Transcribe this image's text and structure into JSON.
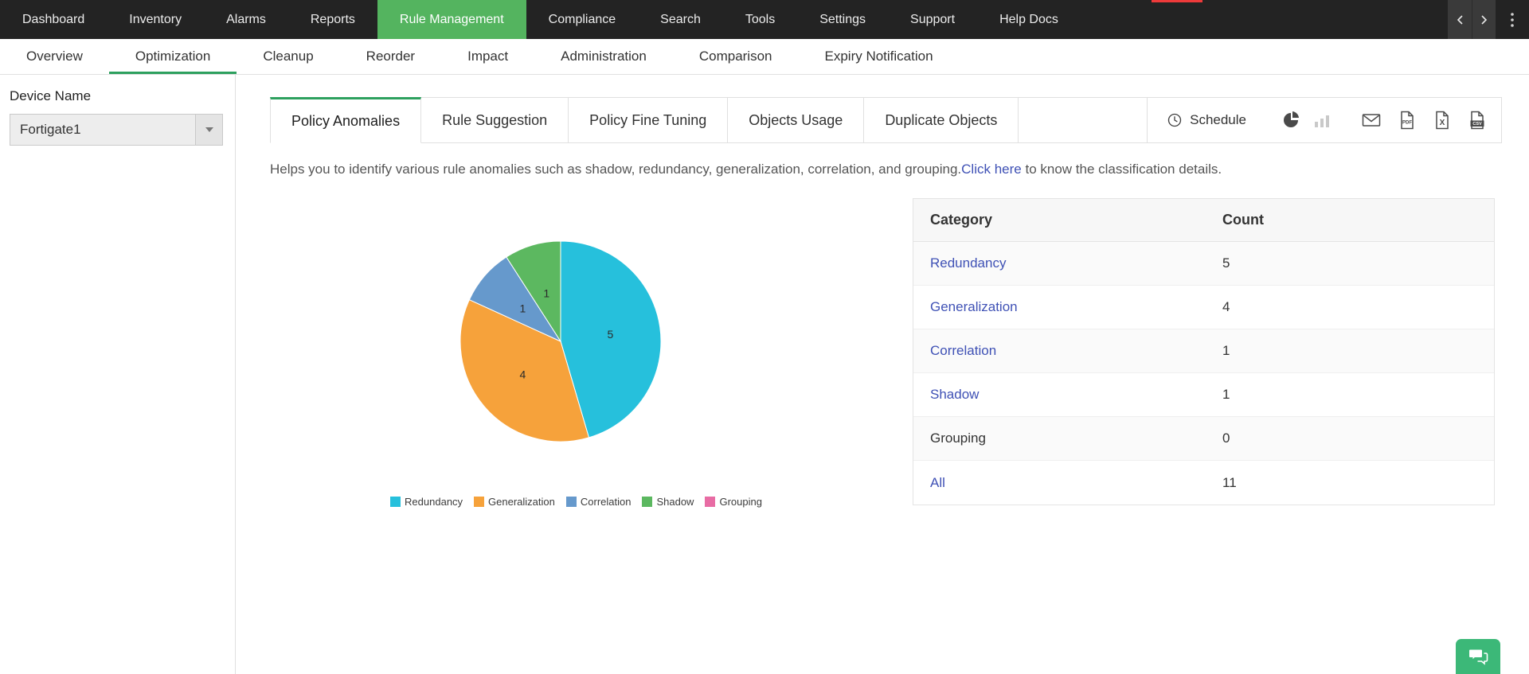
{
  "top_nav": {
    "items": [
      {
        "label": "Dashboard"
      },
      {
        "label": "Inventory"
      },
      {
        "label": "Alarms"
      },
      {
        "label": "Reports"
      },
      {
        "label": "Rule Management"
      },
      {
        "label": "Compliance"
      },
      {
        "label": "Search"
      },
      {
        "label": "Tools"
      },
      {
        "label": "Settings"
      },
      {
        "label": "Support"
      },
      {
        "label": "Help Docs"
      }
    ],
    "active": "Rule Management",
    "active_color": "#54B45F",
    "background_color": "#232323"
  },
  "sub_nav": {
    "items": [
      {
        "label": "Overview"
      },
      {
        "label": "Optimization"
      },
      {
        "label": "Cleanup"
      },
      {
        "label": "Reorder"
      },
      {
        "label": "Impact"
      },
      {
        "label": "Administration"
      },
      {
        "label": "Comparison"
      },
      {
        "label": "Expiry Notification"
      }
    ],
    "active": "Optimization",
    "active_underline_color": "#2DA05E"
  },
  "sidebar": {
    "device_name_label": "Device Name",
    "device_selected": "Fortigate1"
  },
  "tabs": {
    "items": [
      {
        "label": "Policy Anomalies"
      },
      {
        "label": "Rule Suggestion"
      },
      {
        "label": "Policy Fine Tuning"
      },
      {
        "label": "Objects Usage"
      },
      {
        "label": "Duplicate Objects"
      }
    ],
    "active": "Policy Anomalies",
    "active_border_color": "#2DA05E"
  },
  "toolbar": {
    "schedule_label": "Schedule",
    "view_icons": [
      "pie-chart-icon",
      "bar-chart-icon"
    ],
    "export_icons": [
      "email-icon",
      "pdf-export-icon",
      "excel-export-icon",
      "csv-export-icon"
    ]
  },
  "description": {
    "text_before": "Helps you to identify various rule anomalies such as shadow, redundancy, generalization, correlation, and grouping.",
    "link_text": "Click here",
    "text_after": " to know the classification details.",
    "link_color": "#3F51B5"
  },
  "chart_data": {
    "type": "pie",
    "categories": [
      "Redundancy",
      "Generalization",
      "Correlation",
      "Shadow",
      "Grouping"
    ],
    "values": [
      5,
      4,
      1,
      1,
      0
    ],
    "colors": [
      "#26C0DC",
      "#F6A23B",
      "#6699CC",
      "#5CB860",
      "#E86CA4"
    ],
    "total": 11,
    "legend_position": "bottom",
    "start_angle": "top",
    "direction": "clockwise",
    "data_labels": [
      5,
      4,
      1,
      1
    ]
  },
  "table": {
    "headers": [
      "Category",
      "Count"
    ],
    "rows": [
      {
        "category": "Redundancy",
        "count": 5,
        "is_link": true
      },
      {
        "category": "Generalization",
        "count": 4,
        "is_link": true
      },
      {
        "category": "Correlation",
        "count": 1,
        "is_link": true
      },
      {
        "category": "Shadow",
        "count": 1,
        "is_link": true
      },
      {
        "category": "Grouping",
        "count": 0,
        "is_link": false
      },
      {
        "category": "All",
        "count": 11,
        "is_link": true
      }
    ]
  },
  "chat_button": {
    "icon": "chat-icon",
    "color": "#3CB878"
  },
  "misc": {
    "top_red_marker_color": "#ED3A3A"
  }
}
